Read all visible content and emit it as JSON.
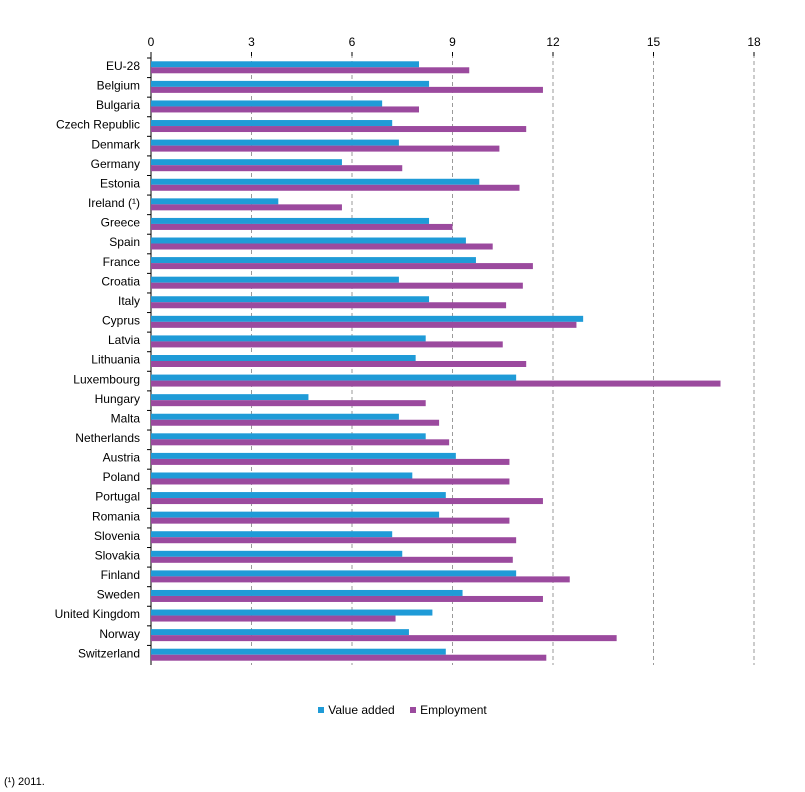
{
  "chart_data": {
    "type": "bar",
    "orientation": "horizontal",
    "title": "",
    "xlabel": "",
    "ylabel": "",
    "xlim": [
      0,
      18
    ],
    "x_ticks": [
      0,
      3,
      6,
      9,
      12,
      15,
      18
    ],
    "x_axis_position": "top",
    "grid": "vertical dashed",
    "legend_position": "bottom-center",
    "categories": [
      "EU-28",
      "Belgium",
      "Bulgaria",
      "Czech Republic",
      "Denmark",
      "Germany",
      "Estonia",
      "Ireland (¹)",
      "Greece",
      "Spain",
      "France",
      "Croatia",
      "Italy",
      "Cyprus",
      "Latvia",
      "Lithuania",
      "Luxembourg",
      "Hungary",
      "Malta",
      "Netherlands",
      "Austria",
      "Poland",
      "Portugal",
      "Romania",
      "Slovenia",
      "Slovakia",
      "Finland",
      "Sweden",
      "United Kingdom",
      "Norway",
      "Switzerland"
    ],
    "series": [
      {
        "name": "Value added",
        "color": "#1f9bd7",
        "values": [
          8.0,
          8.3,
          6.9,
          7.2,
          7.4,
          5.7,
          9.8,
          3.8,
          8.3,
          9.4,
          9.7,
          7.4,
          8.3,
          12.9,
          8.2,
          7.9,
          10.9,
          4.7,
          7.4,
          8.2,
          9.1,
          7.8,
          8.8,
          8.6,
          7.2,
          7.5,
          10.9,
          9.3,
          8.4,
          7.7,
          8.8
        ]
      },
      {
        "name": "Employment",
        "color": "#9b4a9e",
        "values": [
          9.5,
          11.7,
          8.0,
          11.2,
          10.4,
          7.5,
          11.0,
          5.7,
          9.0,
          10.2,
          11.4,
          11.1,
          10.6,
          12.7,
          10.5,
          11.2,
          17.0,
          8.2,
          8.6,
          8.9,
          10.7,
          10.7,
          11.7,
          10.7,
          10.9,
          10.8,
          12.5,
          11.7,
          7.3,
          13.9,
          11.8
        ]
      }
    ]
  },
  "footnote": "(¹) 2011."
}
